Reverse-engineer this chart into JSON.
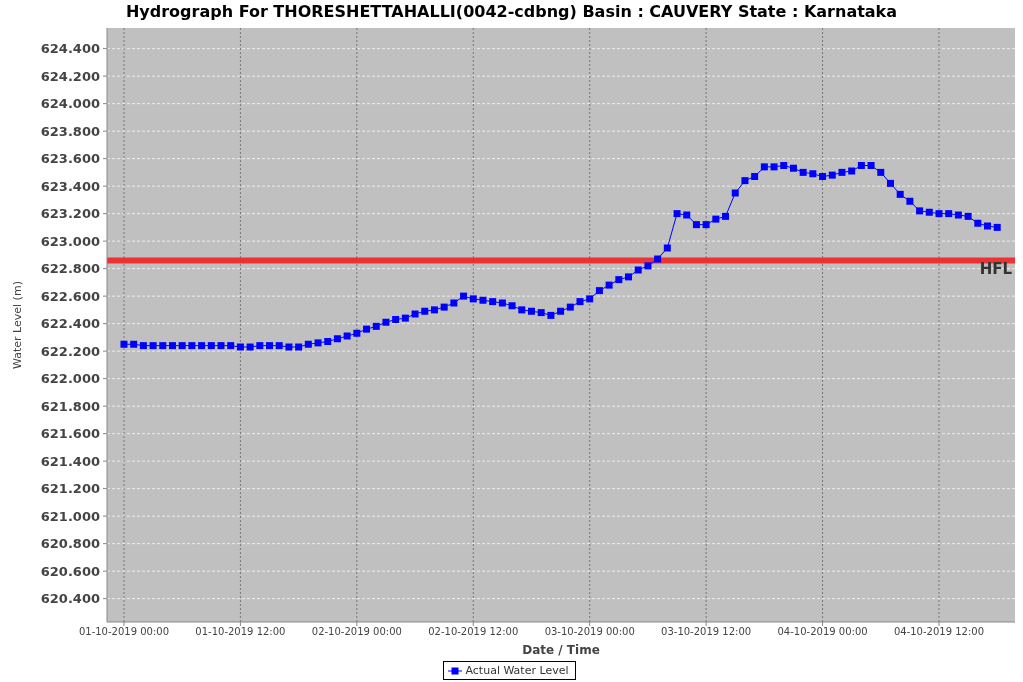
{
  "chart_data": {
    "type": "line",
    "title": "Hydrograph For THORESHETTAHALLI(0042-cdbng) Basin : CAUVERY State : Karnataka",
    "xlabel": "Date / Time",
    "ylabel": "Water Level (m)",
    "x": [
      "2019-10-01T00:00",
      "2019-10-01T01:00",
      "2019-10-01T02:00",
      "2019-10-01T03:00",
      "2019-10-01T04:00",
      "2019-10-01T05:00",
      "2019-10-01T06:00",
      "2019-10-01T07:00",
      "2019-10-01T08:00",
      "2019-10-01T09:00",
      "2019-10-01T10:00",
      "2019-10-01T11:00",
      "2019-10-01T12:00",
      "2019-10-01T13:00",
      "2019-10-01T14:00",
      "2019-10-01T15:00",
      "2019-10-01T16:00",
      "2019-10-01T17:00",
      "2019-10-01T18:00",
      "2019-10-01T19:00",
      "2019-10-01T20:00",
      "2019-10-01T21:00",
      "2019-10-01T22:00",
      "2019-10-01T23:00",
      "2019-10-02T00:00",
      "2019-10-02T01:00",
      "2019-10-02T02:00",
      "2019-10-02T03:00",
      "2019-10-02T04:00",
      "2019-10-02T05:00",
      "2019-10-02T06:00",
      "2019-10-02T07:00",
      "2019-10-02T08:00",
      "2019-10-02T09:00",
      "2019-10-02T10:00",
      "2019-10-02T11:00",
      "2019-10-02T12:00",
      "2019-10-02T13:00",
      "2019-10-02T14:00",
      "2019-10-02T15:00",
      "2019-10-02T16:00",
      "2019-10-02T17:00",
      "2019-10-02T18:00",
      "2019-10-02T19:00",
      "2019-10-02T20:00",
      "2019-10-02T21:00",
      "2019-10-02T22:00",
      "2019-10-02T23:00",
      "2019-10-03T00:00",
      "2019-10-03T01:00",
      "2019-10-03T02:00",
      "2019-10-03T03:00",
      "2019-10-03T04:00",
      "2019-10-03T05:00",
      "2019-10-03T06:00",
      "2019-10-03T07:00",
      "2019-10-03T08:00",
      "2019-10-03T09:00",
      "2019-10-03T10:00",
      "2019-10-03T11:00",
      "2019-10-03T12:00",
      "2019-10-03T13:00",
      "2019-10-03T14:00",
      "2019-10-03T15:00",
      "2019-10-03T16:00",
      "2019-10-03T17:00",
      "2019-10-03T18:00",
      "2019-10-03T19:00",
      "2019-10-03T20:00",
      "2019-10-03T21:00",
      "2019-10-03T22:00",
      "2019-10-03T23:00",
      "2019-10-04T00:00",
      "2019-10-04T01:00",
      "2019-10-04T02:00",
      "2019-10-04T03:00",
      "2019-10-04T04:00",
      "2019-10-04T05:00",
      "2019-10-04T06:00",
      "2019-10-04T07:00",
      "2019-10-04T08:00",
      "2019-10-04T09:00",
      "2019-10-04T10:00",
      "2019-10-04T11:00",
      "2019-10-04T12:00",
      "2019-10-04T13:00",
      "2019-10-04T14:00",
      "2019-10-04T15:00",
      "2019-10-04T16:00",
      "2019-10-04T17:00",
      "2019-10-04T18:00"
    ],
    "series": [
      {
        "name": "Actual Water Level",
        "color": "#0000ff",
        "values": [
          622.25,
          622.25,
          622.24,
          622.24,
          622.24,
          622.24,
          622.24,
          622.24,
          622.24,
          622.24,
          622.24,
          622.24,
          622.23,
          622.23,
          622.24,
          622.24,
          622.24,
          622.23,
          622.23,
          622.25,
          622.26,
          622.27,
          622.29,
          622.31,
          622.33,
          622.36,
          622.38,
          622.41,
          622.43,
          622.44,
          622.47,
          622.49,
          622.5,
          622.52,
          622.55,
          622.6,
          622.58,
          622.57,
          622.56,
          622.55,
          622.53,
          622.5,
          622.49,
          622.48,
          622.46,
          622.49,
          622.52,
          622.56,
          622.58,
          622.64,
          622.68,
          622.72,
          622.74,
          622.79,
          622.82,
          622.87,
          622.95,
          623.2,
          623.19,
          623.12,
          623.12,
          623.16,
          623.18,
          623.35,
          623.44,
          623.47,
          623.54,
          623.54,
          623.55,
          623.53,
          623.5,
          623.49,
          623.47,
          623.48,
          623.5,
          623.51,
          623.55,
          623.55,
          623.5,
          623.42,
          623.34,
          623.29,
          623.22,
          623.21,
          623.2,
          623.2,
          623.19,
          623.18,
          623.13,
          623.11,
          623.1
        ]
      }
    ],
    "xlim": [
      "2019-09-30T22:15",
      "2019-10-04T19:50"
    ],
    "xticks": [
      {
        "value": "2019-10-01T00:00",
        "label": "01-10-2019 00:00"
      },
      {
        "value": "2019-10-01T12:00",
        "label": "01-10-2019 12:00"
      },
      {
        "value": "2019-10-02T00:00",
        "label": "02-10-2019 00:00"
      },
      {
        "value": "2019-10-02T12:00",
        "label": "02-10-2019 12:00"
      },
      {
        "value": "2019-10-03T00:00",
        "label": "03-10-2019 00:00"
      },
      {
        "value": "2019-10-03T12:00",
        "label": "03-10-2019 12:00"
      },
      {
        "value": "2019-10-04T00:00",
        "label": "04-10-2019 00:00"
      },
      {
        "value": "2019-10-04T12:00",
        "label": "04-10-2019 12:00"
      }
    ],
    "ylim": [
      620.23,
      624.55
    ],
    "yticks": [
      {
        "value": 620.4,
        "label": "620.400"
      },
      {
        "value": 620.6,
        "label": "620.600"
      },
      {
        "value": 620.8,
        "label": "620.800"
      },
      {
        "value": 621.0,
        "label": "621.000"
      },
      {
        "value": 621.2,
        "label": "621.200"
      },
      {
        "value": 621.4,
        "label": "621.400"
      },
      {
        "value": 621.6,
        "label": "621.600"
      },
      {
        "value": 621.8,
        "label": "621.800"
      },
      {
        "value": 622.0,
        "label": "622.000"
      },
      {
        "value": 622.2,
        "label": "622.200"
      },
      {
        "value": 622.4,
        "label": "622.400"
      },
      {
        "value": 622.6,
        "label": "622.600"
      },
      {
        "value": 622.8,
        "label": "622.800"
      },
      {
        "value": 623.0,
        "label": "623.000"
      },
      {
        "value": 623.2,
        "label": "623.200"
      },
      {
        "value": 623.4,
        "label": "623.400"
      },
      {
        "value": 623.6,
        "label": "623.600"
      },
      {
        "value": 623.8,
        "label": "623.800"
      },
      {
        "value": 624.0,
        "label": "624.000"
      },
      {
        "value": 624.2,
        "label": "624.200"
      },
      {
        "value": 624.4,
        "label": "624.400"
      }
    ],
    "ref_lines": [
      {
        "axis": "y",
        "value": 622.86,
        "label": "HFL",
        "color": "#ee2a2a"
      }
    ],
    "grid": true,
    "legend": "bottom",
    "marker": "square",
    "line_style": "solid"
  }
}
